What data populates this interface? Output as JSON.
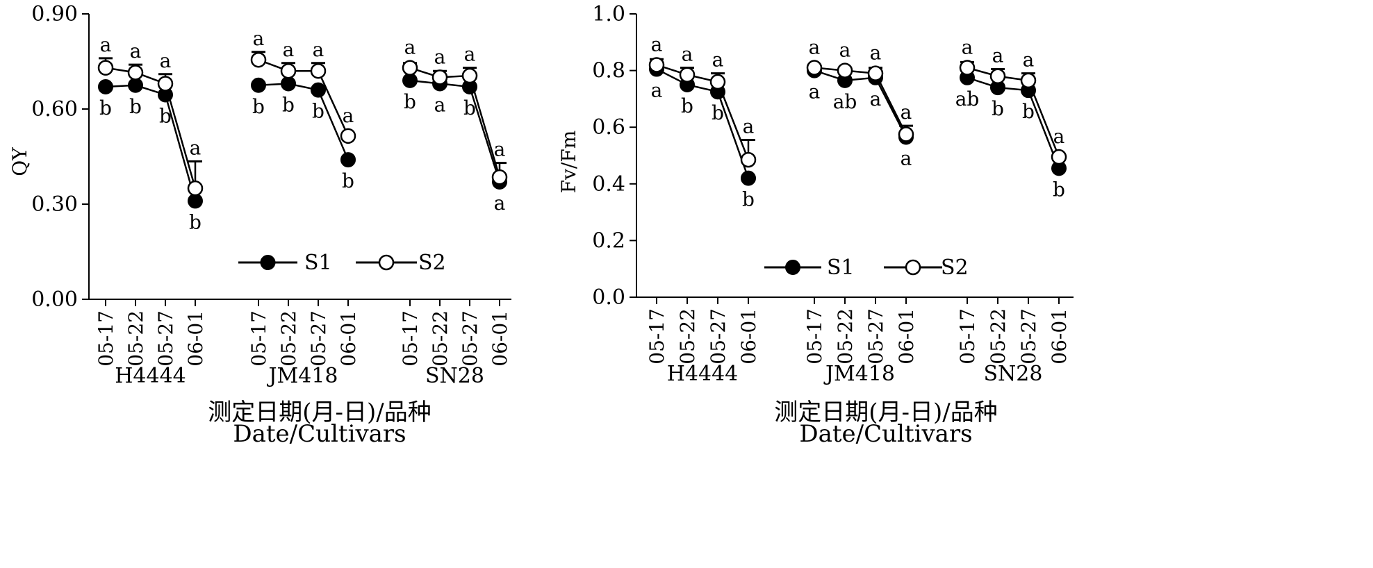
{
  "chart_data": [
    {
      "type": "line",
      "ylabel": "QY",
      "ylim": [
        0,
        0.9
      ],
      "yticks": [
        "0.00",
        "0.30",
        "0.60",
        "0.90"
      ],
      "yticks_values": [
        0,
        0.3,
        0.6,
        0.9
      ],
      "groups": [
        {
          "name": "H4444",
          "dates": [
            "05-17",
            "05-22",
            "05-27",
            "06-01"
          ]
        },
        {
          "name": "JM418",
          "dates": [
            "05-17",
            "05-22",
            "05-27",
            "06-01"
          ]
        },
        {
          "name": "SN28",
          "dates": [
            "05-17",
            "05-22",
            "05-27",
            "06-01"
          ]
        }
      ],
      "series": [
        {
          "name": "S1",
          "marker": "filled",
          "values": [
            [
              0.67,
              0.675,
              0.645,
              0.31
            ],
            [
              0.675,
              0.68,
              0.66,
              0.44
            ],
            [
              0.69,
              0.68,
              0.67,
              0.37
            ]
          ],
          "labels": [
            [
              "b",
              "b",
              "b",
              "b"
            ],
            [
              "b",
              "b",
              "b",
              "b"
            ],
            [
              "b",
              "a",
              "b",
              "a"
            ]
          ]
        },
        {
          "name": "S2",
          "marker": "open",
          "values": [
            [
              0.73,
              0.715,
              0.68,
              0.35
            ],
            [
              0.755,
              0.72,
              0.72,
              0.515
            ],
            [
              0.73,
              0.7,
              0.705,
              0.385
            ]
          ],
          "errors": [
            [
              0.03,
              0.025,
              0.03,
              0.085
            ],
            [
              0.025,
              0.025,
              0.025,
              0.0
            ],
            [
              0.015,
              0.02,
              0.025,
              0.045
            ]
          ],
          "labels": [
            [
              "a",
              "a",
              "a",
              "a"
            ],
            [
              "a",
              "a",
              "a",
              "a"
            ],
            [
              "a",
              "a",
              "a",
              "a"
            ]
          ]
        }
      ],
      "legend": [
        "S1",
        "S2"
      ],
      "xlabel_cn": "测定日期(月-日)/品种",
      "xlabel_en": "Date/Cultivars"
    },
    {
      "type": "line",
      "ylabel": "Fv/Fm",
      "ylim": [
        0,
        1.0
      ],
      "yticks": [
        "0.0",
        "0.2",
        "0.4",
        "0.6",
        "0.8",
        "1.0"
      ],
      "yticks_values": [
        0,
        0.2,
        0.4,
        0.6,
        0.8,
        1.0
      ],
      "groups": [
        {
          "name": "H4444",
          "dates": [
            "05-17",
            "05-22",
            "05-27",
            "06-01"
          ]
        },
        {
          "name": "JM418",
          "dates": [
            "05-17",
            "05-22",
            "05-27",
            "06-01"
          ]
        },
        {
          "name": "SN28",
          "dates": [
            "05-17",
            "05-22",
            "05-27",
            "06-01"
          ]
        }
      ],
      "series": [
        {
          "name": "S1",
          "marker": "filled",
          "values": [
            [
              0.805,
              0.75,
              0.725,
              0.42
            ],
            [
              0.8,
              0.765,
              0.775,
              0.565
            ],
            [
              0.775,
              0.74,
              0.73,
              0.455
            ]
          ],
          "labels": [
            [
              "a",
              "b",
              "b",
              "b"
            ],
            [
              "a",
              "ab",
              "a",
              "a"
            ],
            [
              "ab",
              "b",
              "b",
              "b"
            ]
          ]
        },
        {
          "name": "S2",
          "marker": "open",
          "values": [
            [
              0.82,
              0.785,
              0.76,
              0.485
            ],
            [
              0.81,
              0.8,
              0.79,
              0.575
            ],
            [
              0.81,
              0.78,
              0.765,
              0.495
            ]
          ],
          "errors": [
            [
              0.02,
              0.025,
              0.03,
              0.07
            ],
            [
              0.01,
              0.01,
              0.02,
              0.03
            ],
            [
              0.02,
              0.025,
              0.025,
              0.0
            ]
          ],
          "labels": [
            [
              "a",
              "a",
              "a",
              "a"
            ],
            [
              "a",
              "a",
              "a",
              "a"
            ],
            [
              "a",
              "a",
              "a",
              "a"
            ]
          ]
        }
      ],
      "legend": [
        "S1",
        "S2"
      ],
      "xlabel_cn": "测定日期(月-日)/品种",
      "xlabel_en": "Date/Cultivars"
    }
  ]
}
